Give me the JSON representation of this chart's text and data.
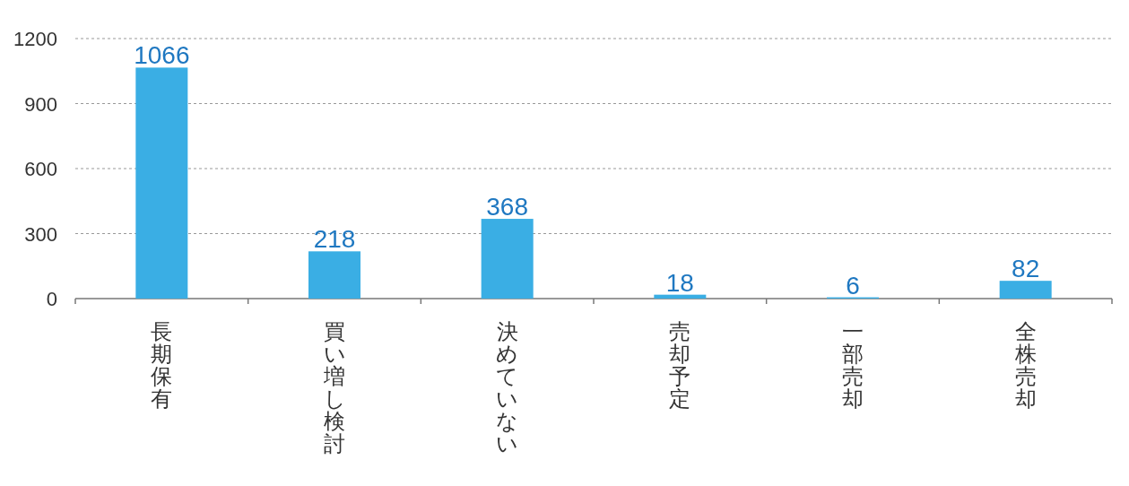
{
  "chart_data": {
    "type": "bar",
    "categories": [
      "長期保有",
      "買い増し検討",
      "決めていない",
      "売却予定",
      "一部売却",
      "全株売却"
    ],
    "values": [
      1066,
      218,
      368,
      18,
      6,
      82
    ],
    "color": "#3aaee4",
    "ylim": [
      0,
      1200
    ],
    "yticks": [
      0,
      300,
      600,
      900,
      1200
    ],
    "grid": "y",
    "data_labels": true
  }
}
